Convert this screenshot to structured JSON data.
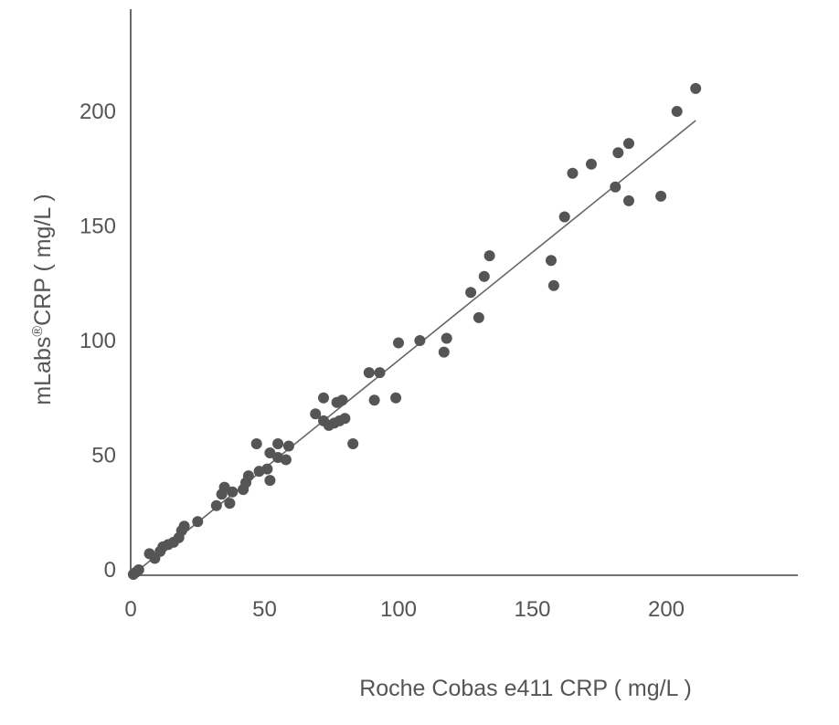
{
  "chart_data": {
    "type": "scatter",
    "xlabel": "Roche Cobas e411 CRP ( mg/L )",
    "ylabel_main": "mLabs",
    "ylabel_sup": "®",
    "ylabel_rest": "CRP ( mg/L )",
    "xlim": [
      0,
      250
    ],
    "ylim": [
      0,
      240
    ],
    "x_ticks": [
      0,
      50,
      100,
      150,
      200
    ],
    "y_ticks": [
      0,
      50,
      100,
      150,
      200
    ],
    "grid": false,
    "legend": "none",
    "colors": {
      "points": "#555555",
      "line": "#666666",
      "axes": "#444444"
    },
    "trendline": {
      "x_start": 2,
      "y_start": -1,
      "x_end": 211,
      "y_end": 196
    },
    "points": [
      [
        1,
        -2
      ],
      [
        2,
        -1
      ],
      [
        3,
        0
      ],
      [
        7,
        7
      ],
      [
        9,
        5
      ],
      [
        11,
        8
      ],
      [
        12,
        10
      ],
      [
        14,
        11
      ],
      [
        16,
        12
      ],
      [
        18,
        14
      ],
      [
        19,
        17
      ],
      [
        20,
        19
      ],
      [
        25,
        21
      ],
      [
        32,
        28
      ],
      [
        34,
        33
      ],
      [
        35,
        36
      ],
      [
        37,
        29
      ],
      [
        38,
        34
      ],
      [
        42,
        35
      ],
      [
        43,
        38
      ],
      [
        44,
        41
      ],
      [
        47,
        55
      ],
      [
        48,
        43
      ],
      [
        51,
        44
      ],
      [
        52,
        39
      ],
      [
        52,
        51
      ],
      [
        55,
        49
      ],
      [
        55,
        55
      ],
      [
        58,
        48
      ],
      [
        59,
        54
      ],
      [
        69,
        68
      ],
      [
        72,
        75
      ],
      [
        72,
        65
      ],
      [
        74,
        63
      ],
      [
        76,
        64
      ],
      [
        77,
        73
      ],
      [
        78,
        65
      ],
      [
        79,
        74
      ],
      [
        80,
        66
      ],
      [
        83,
        55
      ],
      [
        89,
        86
      ],
      [
        91,
        74
      ],
      [
        93,
        86
      ],
      [
        99,
        75
      ],
      [
        100,
        99
      ],
      [
        108,
        100
      ],
      [
        117,
        95
      ],
      [
        118,
        101
      ],
      [
        127,
        121
      ],
      [
        130,
        110
      ],
      [
        132,
        128
      ],
      [
        134,
        137
      ],
      [
        157,
        135
      ],
      [
        158,
        124
      ],
      [
        162,
        154
      ],
      [
        165,
        173
      ],
      [
        172,
        177
      ],
      [
        181,
        167
      ],
      [
        182,
        182
      ],
      [
        186,
        186
      ],
      [
        186,
        161
      ],
      [
        198,
        163
      ],
      [
        204,
        200
      ],
      [
        211,
        210
      ]
    ]
  }
}
